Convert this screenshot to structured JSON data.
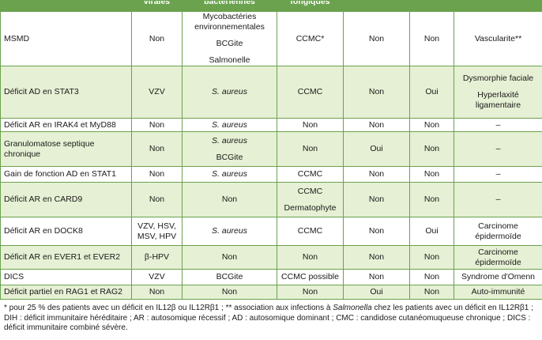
{
  "table": {
    "headers": [
      "",
      "virales",
      "bactériennes",
      "fongiques",
      "",
      "",
      ""
    ],
    "rows": [
      {
        "name": "MSMD",
        "c1": [
          "Non"
        ],
        "c2": [
          "Mycobactéries environnementales",
          "BCGite",
          "Salmonelle"
        ],
        "c3": [
          "CCMC*"
        ],
        "c4": [
          "Non"
        ],
        "c5": [
          "Non"
        ],
        "c6": [
          "Vascularite**"
        ]
      },
      {
        "name": "Déficit AD en STAT3",
        "c1": [
          "VZV"
        ],
        "c2": [
          "S. aureus"
        ],
        "c3": [
          "CCMC"
        ],
        "c4": [
          "Non"
        ],
        "c5": [
          "Oui"
        ],
        "c6": [
          "Dysmorphie faciale",
          "Hyperlaxité ligamentaire"
        ]
      },
      {
        "name": "Déficit AR en IRAK4 et MyD88",
        "c1": [
          "Non"
        ],
        "c2": [
          "S. aureus"
        ],
        "c3": [
          "Non"
        ],
        "c4": [
          "Non"
        ],
        "c5": [
          "Non"
        ],
        "c6": [
          "–"
        ]
      },
      {
        "name": "Granulomatose septique chronique",
        "c1": [
          "Non"
        ],
        "c2": [
          "S. aureus",
          "BCGite"
        ],
        "c3": [
          "Non"
        ],
        "c4": [
          "Oui"
        ],
        "c5": [
          "Non"
        ],
        "c6": [
          "–"
        ]
      },
      {
        "name": "Gain de fonction AD en STAT1",
        "c1": [
          "Non"
        ],
        "c2": [
          "S. aureus"
        ],
        "c3": [
          "CCMC"
        ],
        "c4": [
          "Non"
        ],
        "c5": [
          "Non"
        ],
        "c6": [
          "–"
        ]
      },
      {
        "name": "Déficit AR en CARD9",
        "c1": [
          "Non"
        ],
        "c2": [
          "Non"
        ],
        "c3": [
          "CCMC",
          "Dermatophyte"
        ],
        "c4": [
          "Non"
        ],
        "c5": [
          "Non"
        ],
        "c6": [
          "–"
        ]
      },
      {
        "name": "Déficit AR en DOCK8",
        "c1": [
          "VZV, HSV, MSV, HPV"
        ],
        "c2": [
          "S. aureus"
        ],
        "c3": [
          "CCMC"
        ],
        "c4": [
          "Non"
        ],
        "c5": [
          "Oui"
        ],
        "c6": [
          "Carcinome épidermoïde"
        ]
      },
      {
        "name": "Déficit AR en EVER1 et EVER2",
        "c1": [
          "β-HPV"
        ],
        "c2": [
          "Non"
        ],
        "c3": [
          "Non"
        ],
        "c4": [
          "Non"
        ],
        "c5": [
          "Non"
        ],
        "c6": [
          "Carcinome épidermoïde"
        ]
      },
      {
        "name": "DICS",
        "c1": [
          "VZV"
        ],
        "c2": [
          "BCGite"
        ],
        "c3": [
          "CCMC possible"
        ],
        "c4": [
          "Non"
        ],
        "c5": [
          "Non"
        ],
        "c6": [
          "Syndrome d'Omenn"
        ]
      },
      {
        "name": "Déficit partiel en RAG1 et RAG2",
        "c1": [
          "Non"
        ],
        "c2": [
          "Non"
        ],
        "c3": [
          "Non"
        ],
        "c4": [
          "Oui"
        ],
        "c5": [
          "Non"
        ],
        "c6": [
          "Auto-immunité"
        ]
      }
    ]
  },
  "footnote": "* pour 25 % des patients avec un déficit en IL12β ou IL12Rβ1 ; ** association aux infections à Salmonella chez les patients avec un déficit en IL12Rβ1 ; DIH : déficit immunitaire héréditaire ; AR : autosomique récessif ; AD : autosomique dominant ; CMC : candidose cutanéomuqueuse chronique ; DICS : déficit immunitaire combiné sévère.",
  "colors": {
    "header_bg": "#6aa24e",
    "border": "#6aa24e",
    "band_bg": "#e6f0d4"
  },
  "italic_terms": [
    "S. aureus"
  ]
}
